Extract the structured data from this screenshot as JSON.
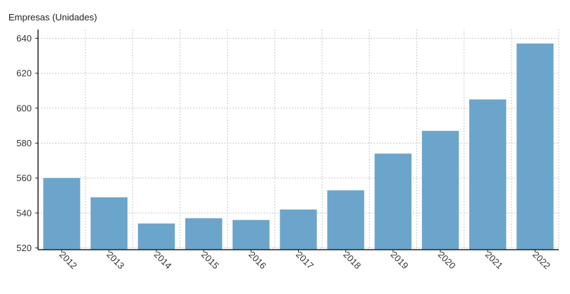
{
  "chart_data": {
    "type": "bar",
    "title": "",
    "xlabel": "",
    "ylabel": "Empresas (Unidades)",
    "categories": [
      "2012",
      "2013",
      "2014",
      "2015",
      "2016",
      "2017",
      "2018",
      "2019",
      "2020",
      "2021",
      "2022"
    ],
    "series": [
      {
        "values": [
          560,
          549,
          534,
          537,
          536,
          542,
          553,
          574,
          587,
          605,
          637
        ],
        "color": "#6ba5cb"
      }
    ],
    "ylim": [
      519,
      645
    ],
    "yticks": [
      "520",
      "540",
      "560",
      "580",
      "600",
      "620",
      "640"
    ],
    "grid": true,
    "legend": "none"
  }
}
